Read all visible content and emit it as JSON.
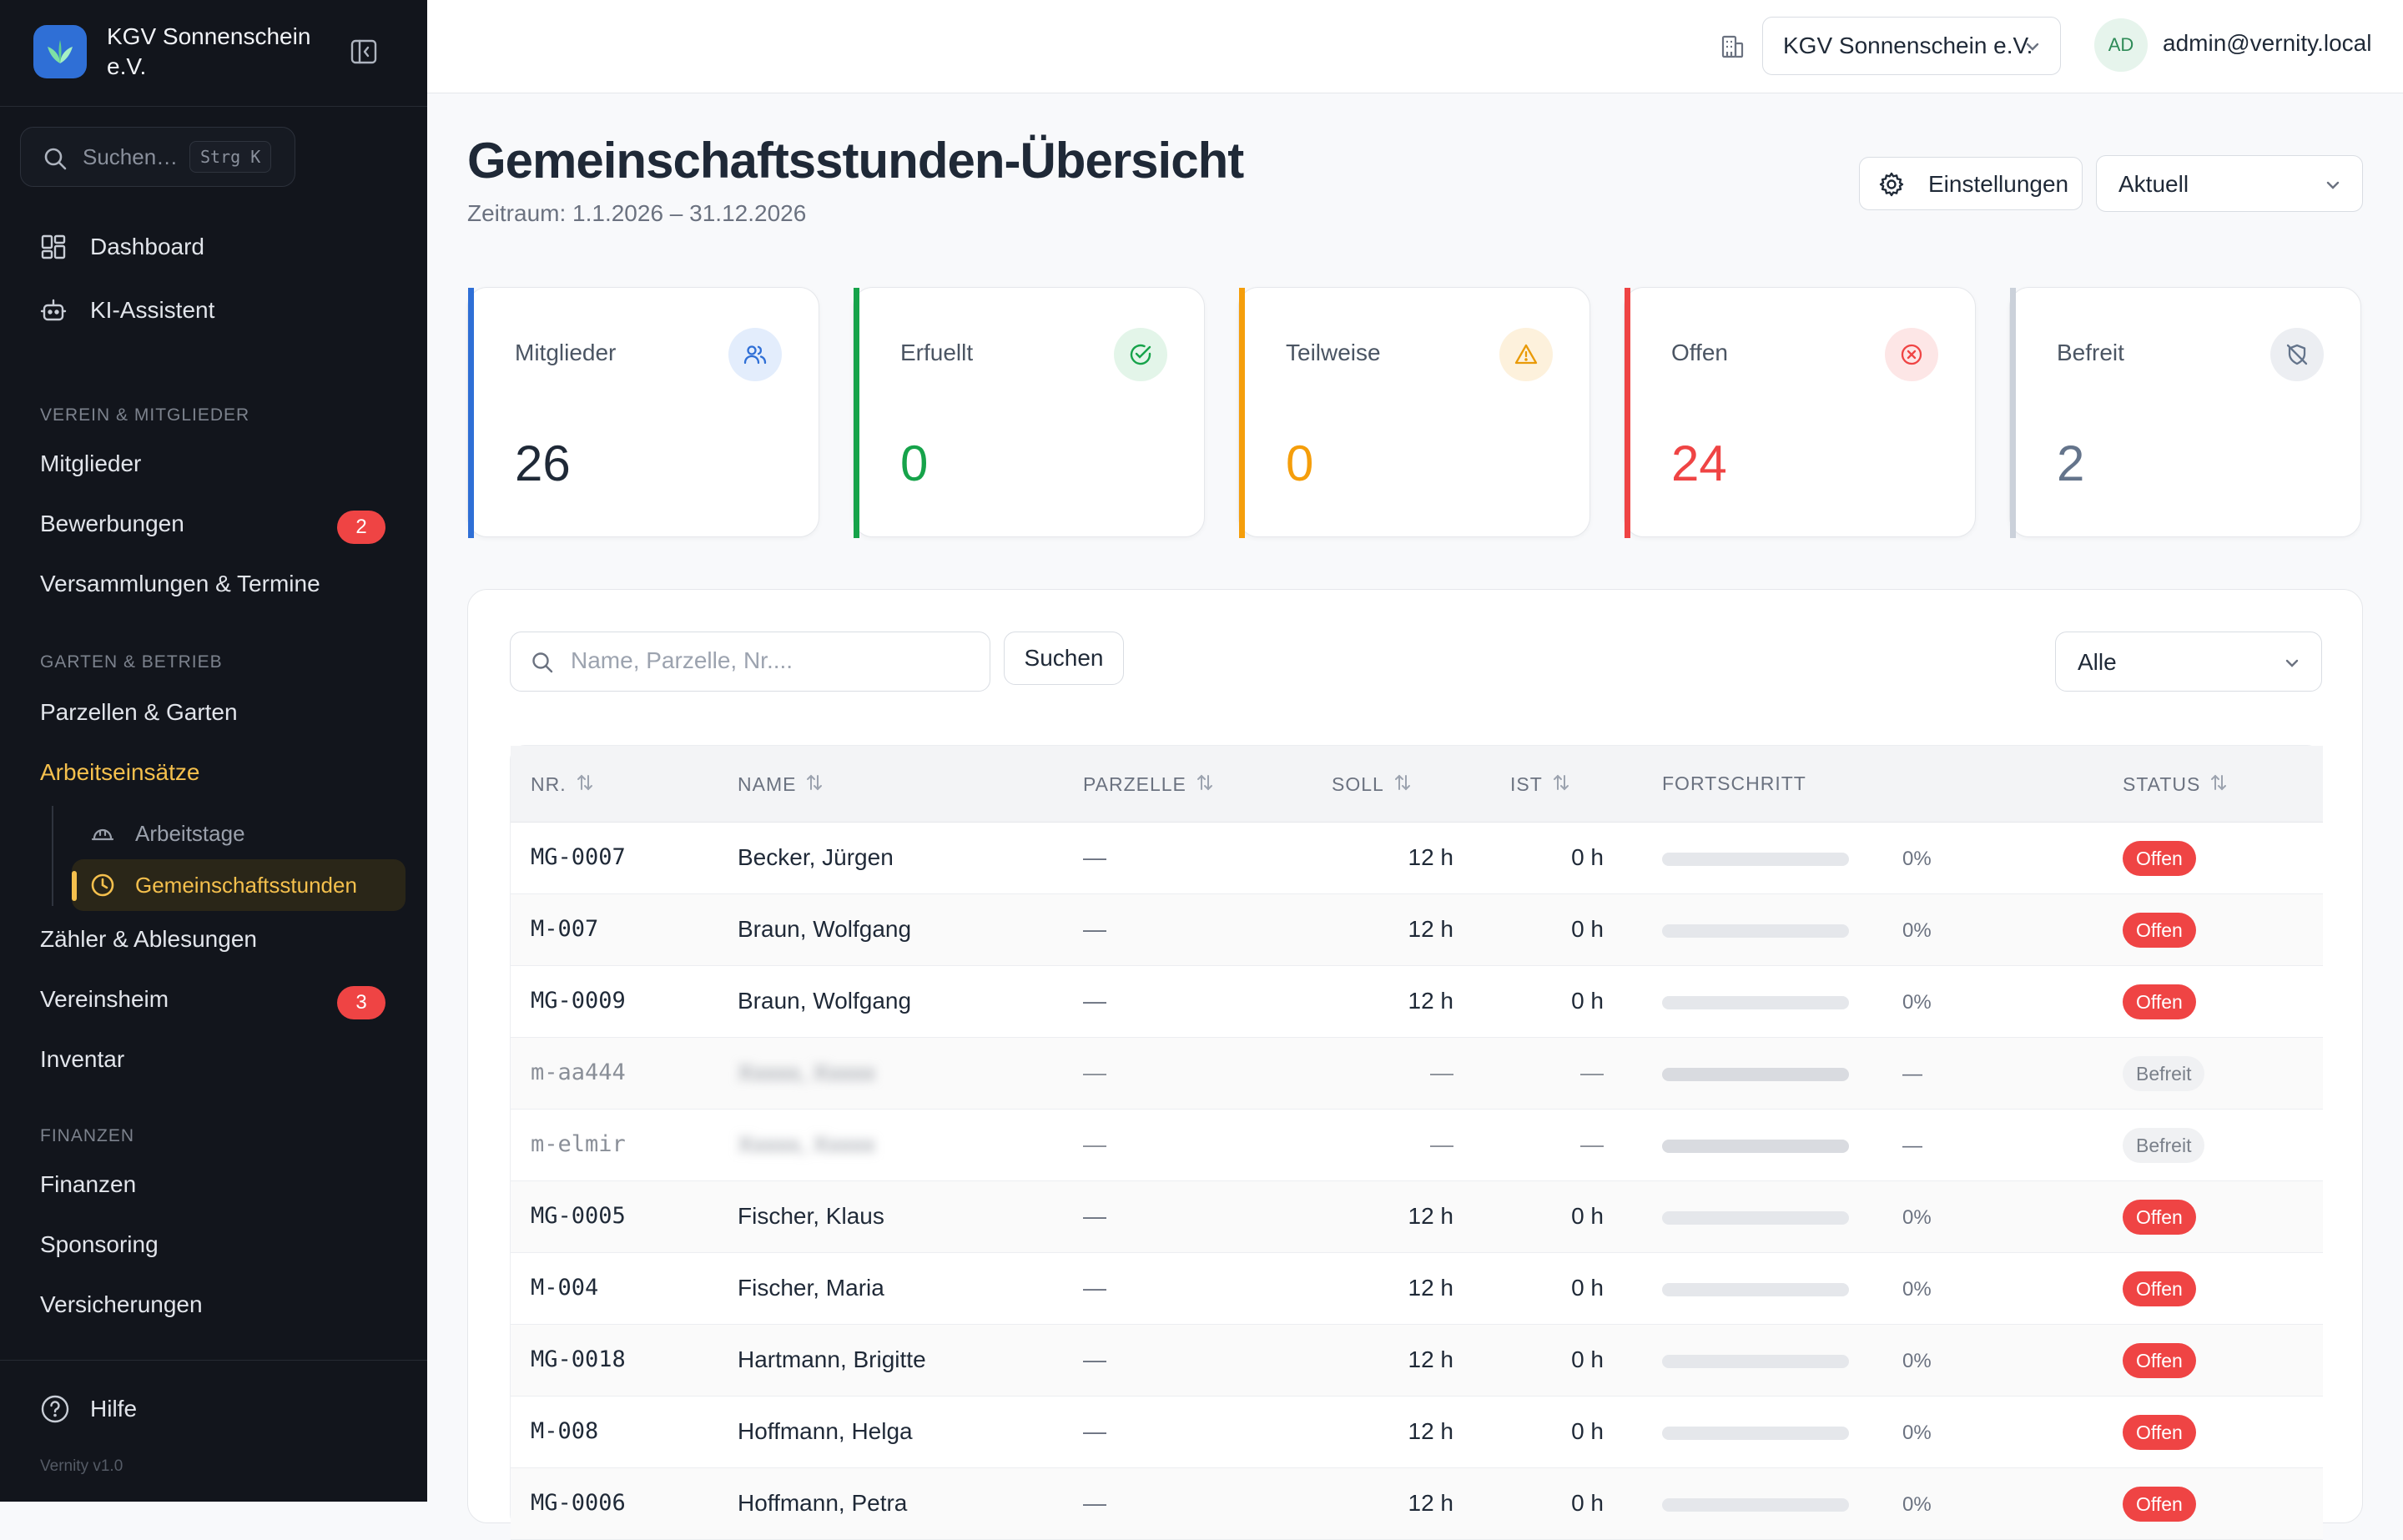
{
  "app": {
    "org_name": "KGV Sonnenschein e.V.",
    "version": "Vernity v1.0"
  },
  "sidebar": {
    "search_placeholder": "Suchen…",
    "search_shortcut": "Strg K",
    "top_items": [
      {
        "label": "Dashboard",
        "icon": "dashboard-icon"
      },
      {
        "label": "KI-Assistent",
        "icon": "robot-icon"
      }
    ],
    "sections": [
      {
        "title": "VEREIN & MITGLIEDER"
      },
      {
        "title": "GARTEN & BETRIEB"
      },
      {
        "title": "FINANZEN"
      }
    ],
    "items": [
      {
        "label": "Mitglieder"
      },
      {
        "label": "Bewerbungen",
        "badge": "2"
      },
      {
        "label": "Versammlungen & Termine"
      },
      {
        "label": "Parzellen & Garten"
      },
      {
        "label": "Arbeitseinsätze"
      },
      {
        "label": "Zähler & Ablesungen"
      },
      {
        "label": "Vereinsheim",
        "badge": "3"
      },
      {
        "label": "Inventar"
      },
      {
        "label": "Finanzen"
      },
      {
        "label": "Sponsoring"
      },
      {
        "label": "Versicherungen"
      }
    ],
    "sub_items": [
      {
        "label": "Arbeitstage",
        "icon": "helmet-icon"
      },
      {
        "label": "Gemeinschaftsstunden",
        "icon": "clock-icon"
      }
    ],
    "help_label": "Hilfe"
  },
  "topbar": {
    "org_select": "KGV Sonnenschein e.V.",
    "avatar_initials": "AD",
    "user_email": "admin@vernity.local"
  },
  "header": {
    "title": "Gemeinschaftsstunden-Übersicht",
    "subtitle": "Zeitraum: 1.1.2026 – 31.12.2026",
    "settings_label": "Einstellungen",
    "period_value": "Aktuell"
  },
  "stats": [
    {
      "label": "Mitglieder",
      "value": "26",
      "color": "#2563eb",
      "icon": "users-icon"
    },
    {
      "label": "Erfuellt",
      "value": "0",
      "color": "#16a34a",
      "icon": "check-circle-icon"
    },
    {
      "label": "Teilweise",
      "value": "0",
      "color": "#f59e0b",
      "icon": "warning-icon"
    },
    {
      "label": "Offen",
      "value": "24",
      "color": "#ef4444",
      "icon": "x-circle-icon"
    },
    {
      "label": "Befreit",
      "value": "2",
      "color": "#64748b",
      "icon": "shield-off-icon"
    }
  ],
  "table": {
    "search_placeholder": "Name, Parzelle, Nr....",
    "search_button": "Suchen",
    "filter_value": "Alle",
    "columns": [
      "NR.",
      "NAME",
      "PARZELLE",
      "SOLL",
      "IST",
      "FORTSCHRITT",
      "STATUS"
    ],
    "rows": [
      {
        "nr": "MG-0007",
        "name": "Becker, Jürgen",
        "parzelle": "—",
        "soll": "12 h",
        "ist": "0 h",
        "progress": "0%",
        "status": "Offen"
      },
      {
        "nr": "M-007",
        "name": "Braun, Wolfgang",
        "parzelle": "—",
        "soll": "12 h",
        "ist": "0 h",
        "progress": "0%",
        "status": "Offen"
      },
      {
        "nr": "MG-0009",
        "name": "Braun, Wolfgang",
        "parzelle": "—",
        "soll": "12 h",
        "ist": "0 h",
        "progress": "0%",
        "status": "Offen"
      },
      {
        "nr": "m-aa444",
        "name": "",
        "parzelle": "—",
        "soll": "—",
        "ist": "—",
        "progress": "—",
        "status": "Befreit"
      },
      {
        "nr": "m-elmir",
        "name": "",
        "parzelle": "—",
        "soll": "—",
        "ist": "—",
        "progress": "—",
        "status": "Befreit"
      },
      {
        "nr": "MG-0005",
        "name": "Fischer, Klaus",
        "parzelle": "—",
        "soll": "12 h",
        "ist": "0 h",
        "progress": "0%",
        "status": "Offen"
      },
      {
        "nr": "M-004",
        "name": "Fischer, Maria",
        "parzelle": "—",
        "soll": "12 h",
        "ist": "0 h",
        "progress": "0%",
        "status": "Offen"
      },
      {
        "nr": "MG-0018",
        "name": "Hartmann, Brigitte",
        "parzelle": "—",
        "soll": "12 h",
        "ist": "0 h",
        "progress": "0%",
        "status": "Offen"
      },
      {
        "nr": "M-008",
        "name": "Hoffmann, Helga",
        "parzelle": "—",
        "soll": "12 h",
        "ist": "0 h",
        "progress": "0%",
        "status": "Offen"
      },
      {
        "nr": "MG-0006",
        "name": "Hoffmann, Petra",
        "parzelle": "—",
        "soll": "12 h",
        "ist": "0 h",
        "progress": "0%",
        "status": "Offen"
      }
    ]
  }
}
